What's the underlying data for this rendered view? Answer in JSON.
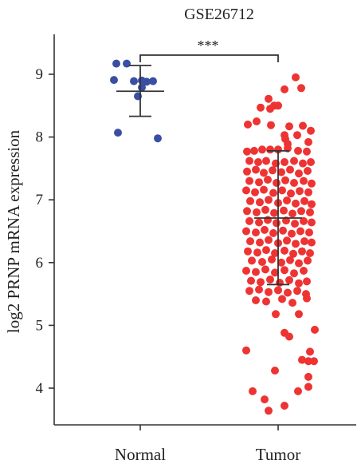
{
  "chart_data": {
    "type": "scatter",
    "title": "GSE26712",
    "ylabel": "log2 PRNP mRNA expression",
    "xlabel": "",
    "ylim": [
      3.5,
      9.6
    ],
    "yticks": [
      4,
      5,
      6,
      7,
      8,
      9
    ],
    "categories": [
      "Normal",
      "Tumor"
    ],
    "significance": "***",
    "grid": false,
    "series": [
      {
        "category": "Normal",
        "color": "#3a4fa3",
        "mean": 8.73,
        "sd_upper": 9.14,
        "sd_lower": 8.33,
        "points": [
          [
            -0.3,
            9.17
          ],
          [
            -0.17,
            9.17
          ],
          [
            -0.33,
            8.91
          ],
          [
            -0.08,
            8.89
          ],
          [
            0.02,
            8.9
          ],
          [
            0.08,
            8.88
          ],
          [
            0.02,
            8.79
          ],
          [
            0.16,
            8.89
          ],
          [
            -0.03,
            8.65
          ],
          [
            -0.28,
            8.07
          ],
          [
            0.22,
            7.98
          ]
        ]
      },
      {
        "category": "Tumor",
        "color": "#ee3333",
        "mean": 6.71,
        "sd_upper": 7.78,
        "sd_lower": 5.65,
        "points": [
          [
            0.22,
            8.95
          ],
          [
            0.08,
            8.76
          ],
          [
            0.29,
            8.78
          ],
          [
            -0.12,
            8.61
          ],
          [
            -0.1,
            8.45
          ],
          [
            -0.05,
            8.5
          ],
          [
            0.0,
            8.5
          ],
          [
            -0.22,
            8.47
          ],
          [
            -0.27,
            8.25
          ],
          [
            -0.38,
            8.2
          ],
          [
            -0.09,
            8.19
          ],
          [
            0.14,
            8.17
          ],
          [
            0.31,
            8.18
          ],
          [
            0.41,
            8.1
          ],
          [
            0.08,
            8.03
          ],
          [
            0.24,
            8.03
          ],
          [
            0.09,
            7.97
          ],
          [
            0.38,
            7.92
          ],
          [
            0.12,
            7.89
          ],
          [
            -0.39,
            7.77
          ],
          [
            -0.3,
            7.78
          ],
          [
            -0.2,
            7.8
          ],
          [
            -0.1,
            7.8
          ],
          [
            0.0,
            7.8
          ],
          [
            0.12,
            7.82
          ],
          [
            0.25,
            7.78
          ],
          [
            0.36,
            7.77
          ],
          [
            -0.36,
            7.62
          ],
          [
            -0.25,
            7.6
          ],
          [
            -0.15,
            7.62
          ],
          [
            -0.03,
            7.58
          ],
          [
            0.08,
            7.6
          ],
          [
            0.2,
            7.62
          ],
          [
            0.31,
            7.58
          ],
          [
            0.41,
            7.6
          ],
          [
            -0.39,
            7.45
          ],
          [
            -0.28,
            7.48
          ],
          [
            -0.18,
            7.43
          ],
          [
            -0.07,
            7.47
          ],
          [
            0.04,
            7.44
          ],
          [
            0.15,
            7.48
          ],
          [
            0.26,
            7.42
          ],
          [
            0.37,
            7.46
          ],
          [
            -0.36,
            7.3
          ],
          [
            -0.24,
            7.28
          ],
          [
            -0.13,
            7.32
          ],
          [
            -0.02,
            7.27
          ],
          [
            0.09,
            7.31
          ],
          [
            0.2,
            7.27
          ],
          [
            0.32,
            7.3
          ],
          [
            0.42,
            7.26
          ],
          [
            -0.4,
            7.15
          ],
          [
            -0.29,
            7.12
          ],
          [
            -0.18,
            7.16
          ],
          [
            -0.06,
            7.11
          ],
          [
            0.05,
            7.15
          ],
          [
            0.16,
            7.1
          ],
          [
            0.27,
            7.14
          ],
          [
            0.38,
            7.12
          ],
          [
            -0.35,
            6.98
          ],
          [
            -0.23,
            6.96
          ],
          [
            -0.12,
            7.0
          ],
          [
            0.0,
            6.95
          ],
          [
            0.11,
            6.99
          ],
          [
            0.22,
            6.94
          ],
          [
            0.33,
            6.98
          ],
          [
            0.42,
            6.93
          ],
          [
            -0.39,
            6.82
          ],
          [
            -0.27,
            6.8
          ],
          [
            -0.16,
            6.84
          ],
          [
            -0.05,
            6.79
          ],
          [
            0.07,
            6.83
          ],
          [
            0.18,
            6.78
          ],
          [
            0.29,
            6.82
          ],
          [
            0.4,
            6.8
          ],
          [
            -0.36,
            6.66
          ],
          [
            -0.24,
            6.64
          ],
          [
            -0.13,
            6.68
          ],
          [
            -0.02,
            6.63
          ],
          [
            0.1,
            6.67
          ],
          [
            0.21,
            6.62
          ],
          [
            0.32,
            6.66
          ],
          [
            0.42,
            6.64
          ],
          [
            -0.4,
            6.5
          ],
          [
            -0.28,
            6.48
          ],
          [
            -0.17,
            6.52
          ],
          [
            -0.06,
            6.47
          ],
          [
            0.06,
            6.51
          ],
          [
            0.17,
            6.46
          ],
          [
            0.28,
            6.5
          ],
          [
            0.39,
            6.48
          ],
          [
            -0.35,
            6.34
          ],
          [
            -0.23,
            6.32
          ],
          [
            -0.12,
            6.36
          ],
          [
            0.0,
            6.31
          ],
          [
            0.11,
            6.35
          ],
          [
            0.22,
            6.3
          ],
          [
            0.33,
            6.34
          ],
          [
            0.42,
            6.32
          ],
          [
            -0.38,
            6.18
          ],
          [
            -0.26,
            6.16
          ],
          [
            -0.15,
            6.2
          ],
          [
            -0.04,
            6.15
          ],
          [
            0.08,
            6.19
          ],
          [
            0.19,
            6.14
          ],
          [
            0.3,
            6.18
          ],
          [
            0.4,
            6.15
          ],
          [
            -0.33,
            6.03
          ],
          [
            -0.2,
            6.01
          ],
          [
            -0.08,
            6.05
          ],
          [
            0.04,
            6.0
          ],
          [
            0.15,
            6.04
          ],
          [
            0.26,
            5.99
          ],
          [
            0.37,
            6.03
          ],
          [
            -0.4,
            5.87
          ],
          [
            -0.28,
            5.85
          ],
          [
            -0.16,
            5.89
          ],
          [
            -0.04,
            5.84
          ],
          [
            0.08,
            5.88
          ],
          [
            0.2,
            5.83
          ],
          [
            0.32,
            5.87
          ],
          [
            -0.34,
            5.71
          ],
          [
            -0.22,
            5.69
          ],
          [
            -0.1,
            5.73
          ],
          [
            0.02,
            5.68
          ],
          [
            0.14,
            5.72
          ],
          [
            0.26,
            5.67
          ],
          [
            0.36,
            5.7
          ],
          [
            -0.36,
            5.55
          ],
          [
            -0.24,
            5.57
          ],
          [
            -0.12,
            5.53
          ],
          [
            0.0,
            5.56
          ],
          [
            0.12,
            5.52
          ],
          [
            0.24,
            5.55
          ],
          [
            0.35,
            5.5
          ],
          [
            -0.28,
            5.4
          ],
          [
            -0.15,
            5.38
          ],
          [
            0.05,
            5.42
          ],
          [
            0.18,
            5.36
          ],
          [
            0.36,
            5.43
          ],
          [
            -0.03,
            5.18
          ],
          [
            0.26,
            5.18
          ],
          [
            0.08,
            4.88
          ],
          [
            0.14,
            4.82
          ],
          [
            0.46,
            4.93
          ],
          [
            -0.4,
            4.6
          ],
          [
            0.4,
            4.58
          ],
          [
            0.3,
            4.45
          ],
          [
            0.38,
            4.43
          ],
          [
            0.45,
            4.43
          ],
          [
            -0.04,
            4.28
          ],
          [
            0.38,
            4.18
          ],
          [
            0.38,
            4.02
          ],
          [
            -0.32,
            3.95
          ],
          [
            0.25,
            3.95
          ],
          [
            -0.17,
            3.82
          ],
          [
            0.08,
            3.72
          ],
          [
            -0.12,
            3.64
          ]
        ]
      }
    ]
  }
}
